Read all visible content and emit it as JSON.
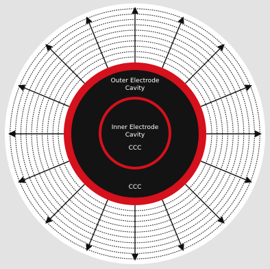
{
  "diagram": {
    "outer_label_line1": "Outer Electrode",
    "outer_label_line2": "Cavity",
    "inner_label_line1": "Inner Electrode",
    "inner_label_line2": "Cavity",
    "inner_ccc": "CCC",
    "outer_ccc": "CCC",
    "arrow_count": 16,
    "ring_count": 10,
    "colors": {
      "background": "#e3e3e3",
      "field_disk": "#ffffff",
      "outer_red": "#d4111c",
      "inner_red": "#d4111c",
      "core": "#131313",
      "arrow": "#111111",
      "dotted_ring": "#2a2a2a",
      "label": "#ffffff"
    }
  }
}
